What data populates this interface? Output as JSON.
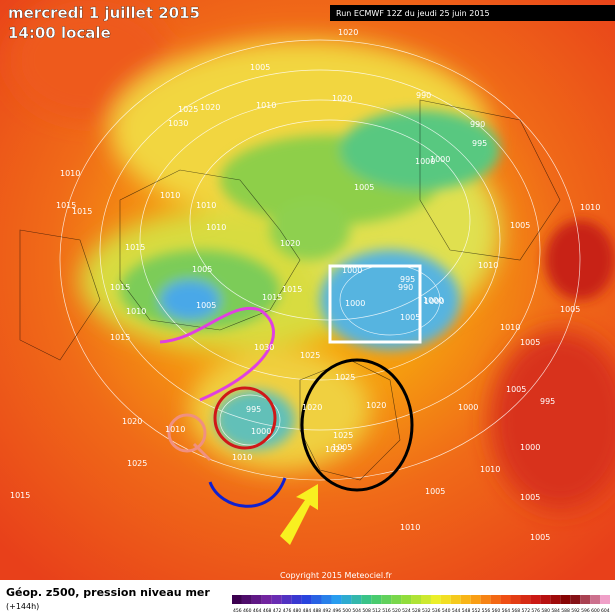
{
  "header": {
    "date": "mercredi 1 juillet 2015",
    "time": "14:00 locale",
    "run": "Run ECMWF 12Z du jeudi 25 juin 2015"
  },
  "footer": {
    "title": "Géop. z500, pression niveau mer",
    "lead": "(+144h)",
    "copyright": "Copyright 2015 Meteociel.fr"
  },
  "isobar_labels": [
    "1020",
    "1005",
    "990",
    "1025",
    "1020",
    "1010",
    "1030",
    "1020",
    "990",
    "995",
    "1000",
    "1005",
    "1010",
    "1015",
    "1015",
    "1010",
    "1010",
    "1015",
    "1020",
    "1005",
    "1015",
    "1010",
    "1015",
    "1005",
    "1000",
    "1000",
    "1005",
    "1015",
    "995",
    "990",
    "1000",
    "1030",
    "1025",
    "1020",
    "1025",
    "1010",
    "1020",
    "995",
    "1000",
    "1010",
    "1005",
    "1000",
    "1025",
    "1025",
    "1020",
    "1005",
    "1000",
    "1025",
    "1000",
    "1010",
    "1005",
    "995",
    "1000",
    "1005",
    "1015",
    "1010",
    "1005",
    "1010",
    "1010",
    "1005",
    "1010",
    "1015",
    "1005",
    "1010",
    "1005"
  ],
  "scale": {
    "labels": [
      "456",
      "460",
      "464",
      "468",
      "472",
      "476",
      "480",
      "484",
      "488",
      "492",
      "496",
      "500",
      "504",
      "508",
      "512",
      "516",
      "520",
      "524",
      "528",
      "532",
      "536",
      "540",
      "544",
      "548",
      "552",
      "556",
      "560",
      "564",
      "568",
      "572",
      "576",
      "580",
      "584",
      "588",
      "592",
      "596",
      "600",
      "604"
    ]
  }
}
